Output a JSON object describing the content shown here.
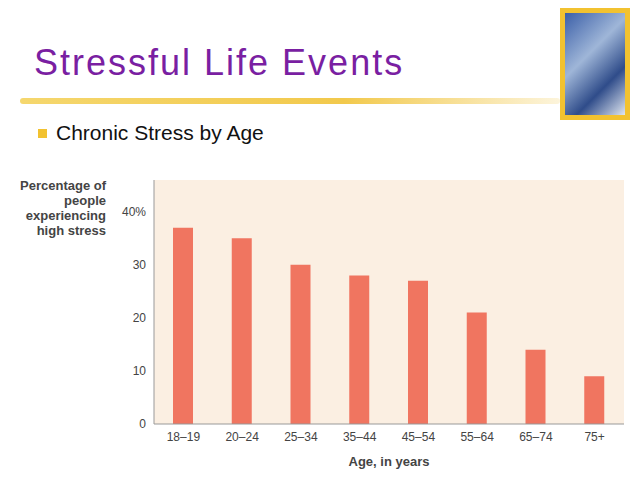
{
  "chart_data": {
    "type": "bar",
    "title": "Stressful Life Events",
    "subtitle": "Chronic Stress by Age",
    "x_label": "Age, in years",
    "y_label": "Percentage of people experiencing high stress",
    "categories": [
      "18–19",
      "20–24",
      "25–34",
      "35–44",
      "45–54",
      "55–64",
      "65–74",
      "75+"
    ],
    "values": [
      37,
      35,
      30,
      28,
      27,
      21,
      14,
      9
    ],
    "color": "#f07560",
    "ylim": [
      0,
      46
    ],
    "yticks": [
      0,
      10,
      20,
      30,
      {
        "value": 40,
        "label": "40%"
      }
    ],
    "grid": false
  }
}
